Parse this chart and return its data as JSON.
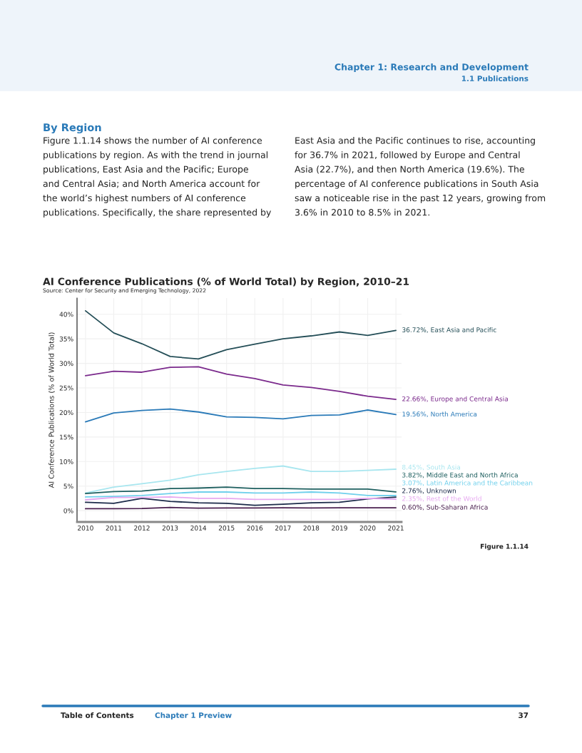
{
  "chart_data": {
    "type": "line",
    "title": "AI Conference Publications (% of World Total) by Region, 2010–21",
    "subtitle": "Source: Center for Security and Emerging Technology, 2022",
    "ylabel": "AI Conference Publications (% of World Total)",
    "x": [
      2010,
      2011,
      2012,
      2013,
      2014,
      2015,
      2016,
      2017,
      2018,
      2019,
      2020,
      2021
    ],
    "xlim": [
      2009.7,
      2021.2
    ],
    "xticks": [
      2010,
      2011,
      2012,
      2013,
      2014,
      2015,
      2016,
      2017,
      2018,
      2019,
      2020,
      2021
    ],
    "ylim": [
      -2.3,
      43.3
    ],
    "yticks": [
      {
        "value": 0,
        "label": "0%"
      },
      {
        "value": 5,
        "label": "5%"
      },
      {
        "value": 10,
        "label": "10%"
      },
      {
        "value": 15,
        "label": "15%"
      },
      {
        "value": 20,
        "label": "20%"
      },
      {
        "value": 25,
        "label": "25%"
      },
      {
        "value": 30,
        "label": "30%"
      },
      {
        "value": 35,
        "label": "35%"
      },
      {
        "value": 40,
        "label": "40%"
      }
    ],
    "grid": true,
    "legend": false,
    "line_style": "solid",
    "series": [
      {
        "name": "East Asia and Pacific",
        "color": "#244e57",
        "values": [
          40.7,
          36.2,
          34.0,
          31.4,
          30.9,
          32.8,
          33.9,
          35.0,
          35.6,
          36.4,
          35.7,
          36.72
        ],
        "value_labels": [
          null,
          null,
          null,
          null,
          null,
          null,
          null,
          null,
          null,
          null,
          null,
          "36.72%,"
        ]
      },
      {
        "name": "Europe and Central Asia",
        "color": "#7b2a8c",
        "values": [
          27.5,
          28.4,
          28.2,
          29.2,
          29.3,
          27.8,
          26.9,
          25.6,
          25.1,
          24.3,
          23.3,
          22.66
        ],
        "value_labels": [
          null,
          null,
          null,
          null,
          null,
          null,
          null,
          null,
          null,
          null,
          null,
          "22.66%,"
        ]
      },
      {
        "name": "North America",
        "color": "#2a7ab8",
        "values": [
          18.1,
          19.9,
          20.4,
          20.7,
          20.1,
          19.1,
          19.0,
          18.7,
          19.4,
          19.5,
          20.5,
          19.56
        ],
        "value_labels": [
          null,
          null,
          null,
          null,
          null,
          null,
          null,
          null,
          null,
          null,
          null,
          "19.56%,"
        ]
      },
      {
        "name": "South Asia",
        "color": "#a8e6ef",
        "values": [
          3.6,
          4.8,
          5.5,
          6.2,
          7.3,
          8.0,
          8.6,
          9.1,
          8.0,
          8.0,
          8.2,
          8.45
        ],
        "value_labels": [
          null,
          null,
          null,
          null,
          null,
          null,
          null,
          null,
          null,
          null,
          null,
          "8.45%,"
        ]
      },
      {
        "name": "Middle East and North Africa",
        "color": "#1e5f5f",
        "values": [
          3.5,
          3.9,
          4.0,
          4.5,
          4.6,
          4.8,
          4.5,
          4.5,
          4.4,
          4.4,
          4.4,
          3.82
        ],
        "value_labels": [
          null,
          null,
          null,
          null,
          null,
          null,
          null,
          null,
          null,
          null,
          null,
          "3.82%,"
        ]
      },
      {
        "name": "Latin America and the Caribbean",
        "color": "#6fd0ec",
        "values": [
          2.8,
          2.9,
          3.1,
          3.5,
          3.8,
          3.8,
          3.6,
          3.6,
          3.8,
          3.6,
          3.1,
          3.07
        ],
        "value_labels": [
          null,
          null,
          null,
          null,
          null,
          null,
          null,
          null,
          null,
          null,
          null,
          "3.07%,"
        ]
      },
      {
        "name": "Unknown",
        "color": "#1c2b4a",
        "values": [
          1.7,
          1.5,
          2.5,
          1.9,
          1.6,
          1.5,
          1.1,
          1.3,
          1.6,
          1.7,
          2.4,
          2.76
        ],
        "value_labels": [
          null,
          null,
          null,
          null,
          null,
          null,
          null,
          null,
          null,
          null,
          null,
          "2.76%,"
        ]
      },
      {
        "name": "Rest of the World",
        "color": "#e6a8f0",
        "values": [
          2.2,
          2.7,
          2.7,
          2.8,
          2.5,
          2.5,
          2.3,
          2.3,
          2.3,
          2.3,
          2.5,
          2.35
        ],
        "value_labels": [
          null,
          null,
          null,
          null,
          null,
          null,
          null,
          null,
          null,
          null,
          null,
          "2.35%,"
        ]
      },
      {
        "name": "Sub-Saharan Africa",
        "color": "#4a1f4f",
        "values": [
          0.4,
          0.4,
          0.45,
          0.65,
          0.5,
          0.55,
          0.55,
          0.6,
          0.55,
          0.6,
          0.6,
          0.6
        ],
        "value_labels": [
          null,
          null,
          null,
          null,
          null,
          null,
          null,
          null,
          null,
          null,
          null,
          "0.60%,"
        ]
      }
    ],
    "annotations": [
      "Chapter 1: Research and Development",
      "1.1 Publications",
      "By Region",
      "Figure 1.1.14 shows the number of AI conference\npublications by region. As with the trend in journal\npublications, East Asia and the Pacific; Europe\nand Central Asia; and North America account for\nthe world’s highest numbers of AI conference\npublications. Specifically, the share represented by",
      "East Asia and the Pacific continues to rise, accounting\nfor 36.7% in 2021, followed by Europe and Central\nAsia (22.7%), and then North America (19.6%). The\npercentage of AI conference publications in South Asia\nsaw a noticeable rise in the past 12 years, growing from\n3.6% in 2010 to 8.5% in 2021.",
      "Figure 1.1.14",
      "Table of Contents",
      "Chapter 1 Preview",
      "37"
    ]
  }
}
